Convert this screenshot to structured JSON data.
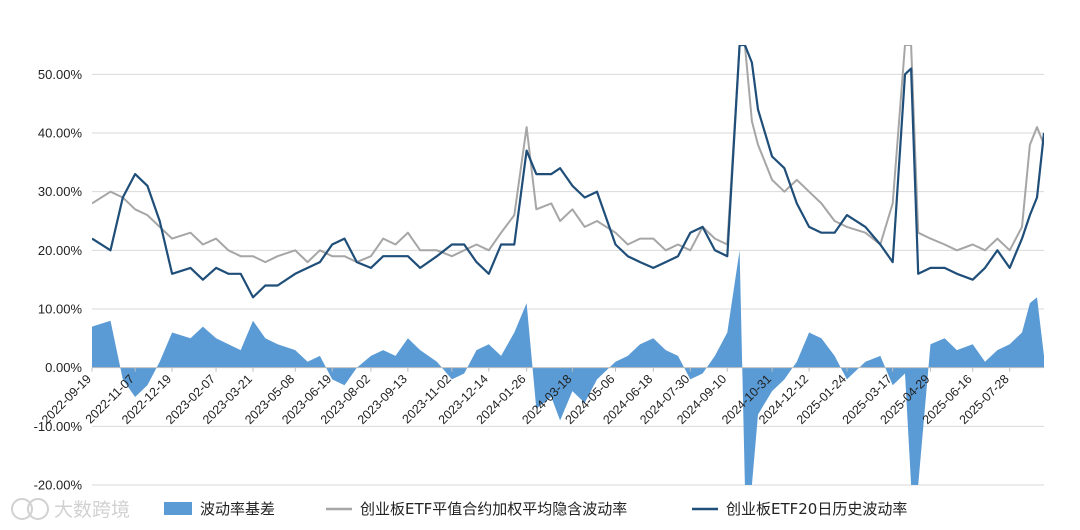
{
  "watermark": {
    "text": "大数跨境",
    "icon": "dashuju-logo-icon"
  },
  "colors": {
    "basis": "#5b9bd5",
    "iv": "#a6a6a6",
    "hv": "#1f4e79",
    "grid": "#d9d9d9",
    "axis": "#bfbfbf"
  },
  "chart_data": {
    "type": "line",
    "title": "",
    "xlabel": "",
    "ylabel": "",
    "ylim": [
      -0.2,
      0.55
    ],
    "yticks": [
      -0.2,
      -0.1,
      0.0,
      0.1,
      0.2,
      0.3,
      0.4,
      0.5
    ],
    "ytick_labels": [
      "-20.00%",
      "-10.00%",
      "0.00%",
      "10.00%",
      "20.00%",
      "30.00%",
      "40.00%",
      "50.00%"
    ],
    "grid": "horizontal",
    "legend_position": "bottom",
    "x_start": "2022-09-19",
    "x_end": "2025-09-05",
    "xtick_labels": [
      "2022-09-19",
      "2022-11-07",
      "2022-12-19",
      "2023-02-07",
      "2023-03-21",
      "2023-05-08",
      "2023-06-19",
      "2023-08-02",
      "2023-09-13",
      "2023-11-02",
      "2023-12-14",
      "2024-01-26",
      "2024-03-18",
      "2024-05-06",
      "2024-06-18",
      "2024-07-30",
      "2024-09-10",
      "2024-10-31",
      "2024-12-12",
      "2025-01-24",
      "2025-03-17",
      "2025-04-29",
      "2025-06-16",
      "2025-07-28"
    ],
    "xtick_display": [
      "2022-09-19",
      "2022-11-07",
      "2022-12-19",
      "2023-02-07",
      "2023-03-21",
      "2023-05-08",
      "2023-06-19",
      "2023-08-02",
      "2023-09-13",
      "2023-11-02",
      "2023-12-14",
      "2024-01-26",
      "2024-03-18",
      "2024-05-06",
      "2024-06-18",
      "2024-07-30",
      "2024-09-10",
      "2024-10-31",
      "2024-12-12",
      "2025-01-24",
      "2025-03-17",
      "2025-04-29",
      "2025-06-16",
      "2025-07-28"
    ],
    "series": [
      {
        "name": "波动率基差",
        "kind": "area",
        "x": [
          "2022-09-19",
          "2022-10-10",
          "2022-10-24",
          "2022-11-07",
          "2022-11-21",
          "2022-12-05",
          "2022-12-19",
          "2023-01-09",
          "2023-01-23",
          "2023-02-07",
          "2023-02-21",
          "2023-03-07",
          "2023-03-21",
          "2023-04-04",
          "2023-04-18",
          "2023-05-08",
          "2023-05-22",
          "2023-06-05",
          "2023-06-19",
          "2023-07-03",
          "2023-07-17",
          "2023-08-02",
          "2023-08-16",
          "2023-08-30",
          "2023-09-13",
          "2023-09-27",
          "2023-10-16",
          "2023-11-02",
          "2023-11-16",
          "2023-11-30",
          "2023-12-14",
          "2023-12-28",
          "2024-01-12",
          "2024-01-26",
          "2024-02-06",
          "2024-02-23",
          "2024-03-04",
          "2024-03-18",
          "2024-04-01",
          "2024-04-15",
          "2024-05-06",
          "2024-05-20",
          "2024-06-03",
          "2024-06-18",
          "2024-07-02",
          "2024-07-16",
          "2024-07-30",
          "2024-08-13",
          "2024-08-27",
          "2024-09-10",
          "2024-09-24",
          "2024-09-30",
          "2024-10-08",
          "2024-10-15",
          "2024-10-31",
          "2024-11-14",
          "2024-11-28",
          "2024-12-12",
          "2024-12-26",
          "2025-01-10",
          "2025-01-24",
          "2025-02-14",
          "2025-03-03",
          "2025-03-17",
          "2025-03-31",
          "2025-04-07",
          "2025-04-15",
          "2025-04-29",
          "2025-05-15",
          "2025-05-29",
          "2025-06-16",
          "2025-06-30",
          "2025-07-14",
          "2025-07-28",
          "2025-08-11",
          "2025-08-20",
          "2025-08-28",
          "2025-09-05"
        ],
        "values": [
          0.07,
          0.08,
          -0.02,
          -0.05,
          -0.03,
          0.01,
          0.06,
          0.05,
          0.07,
          0.05,
          0.04,
          0.03,
          0.08,
          0.05,
          0.04,
          0.03,
          0.01,
          0.02,
          -0.02,
          -0.03,
          0.0,
          0.02,
          0.03,
          0.02,
          0.05,
          0.03,
          0.01,
          -0.02,
          -0.01,
          0.03,
          0.04,
          0.02,
          0.06,
          0.11,
          -0.07,
          -0.05,
          -0.09,
          -0.04,
          -0.06,
          -0.02,
          0.01,
          0.02,
          0.04,
          0.05,
          0.03,
          0.02,
          -0.02,
          -0.01,
          0.02,
          0.06,
          0.2,
          -0.2,
          -0.2,
          -0.08,
          -0.04,
          -0.02,
          0.01,
          0.06,
          0.05,
          0.02,
          -0.02,
          0.01,
          0.02,
          -0.03,
          -0.01,
          -0.2,
          -0.2,
          0.04,
          0.05,
          0.03,
          0.04,
          0.01,
          0.03,
          0.04,
          0.06,
          0.11,
          0.12,
          0.02
        ]
      },
      {
        "name": "创业板ETF平值合约加权平均隐含波动率",
        "kind": "line",
        "x": [
          "2022-09-19",
          "2022-10-10",
          "2022-10-24",
          "2022-11-07",
          "2022-11-21",
          "2022-12-05",
          "2022-12-19",
          "2023-01-09",
          "2023-01-23",
          "2023-02-07",
          "2023-02-21",
          "2023-03-07",
          "2023-03-21",
          "2023-04-04",
          "2023-04-18",
          "2023-05-08",
          "2023-05-22",
          "2023-06-05",
          "2023-06-19",
          "2023-07-03",
          "2023-07-17",
          "2023-08-02",
          "2023-08-16",
          "2023-08-30",
          "2023-09-13",
          "2023-09-27",
          "2023-10-16",
          "2023-11-02",
          "2023-11-16",
          "2023-11-30",
          "2023-12-14",
          "2023-12-28",
          "2024-01-12",
          "2024-01-26",
          "2024-02-06",
          "2024-02-23",
          "2024-03-04",
          "2024-03-18",
          "2024-04-01",
          "2024-04-15",
          "2024-05-06",
          "2024-05-20",
          "2024-06-03",
          "2024-06-18",
          "2024-07-02",
          "2024-07-16",
          "2024-07-30",
          "2024-08-13",
          "2024-08-27",
          "2024-09-10",
          "2024-09-24",
          "2024-09-30",
          "2024-10-08",
          "2024-10-15",
          "2024-10-31",
          "2024-11-14",
          "2024-11-28",
          "2024-12-12",
          "2024-12-26",
          "2025-01-10",
          "2025-01-24",
          "2025-02-14",
          "2025-03-03",
          "2025-03-17",
          "2025-03-31",
          "2025-04-07",
          "2025-04-15",
          "2025-04-29",
          "2025-05-15",
          "2025-05-29",
          "2025-06-16",
          "2025-06-30",
          "2025-07-14",
          "2025-07-28",
          "2025-08-11",
          "2025-08-20",
          "2025-08-28",
          "2025-09-05"
        ],
        "values": [
          0.28,
          0.3,
          0.29,
          0.27,
          0.26,
          0.24,
          0.22,
          0.23,
          0.21,
          0.22,
          0.2,
          0.19,
          0.19,
          0.18,
          0.19,
          0.2,
          0.18,
          0.2,
          0.19,
          0.19,
          0.18,
          0.19,
          0.22,
          0.21,
          0.23,
          0.2,
          0.2,
          0.19,
          0.2,
          0.21,
          0.2,
          0.23,
          0.26,
          0.41,
          0.27,
          0.28,
          0.25,
          0.27,
          0.24,
          0.25,
          0.23,
          0.21,
          0.22,
          0.22,
          0.2,
          0.21,
          0.2,
          0.24,
          0.22,
          0.21,
          0.6,
          0.55,
          0.42,
          0.38,
          0.32,
          0.3,
          0.32,
          0.3,
          0.28,
          0.25,
          0.24,
          0.23,
          0.21,
          0.28,
          0.55,
          0.6,
          0.23,
          0.22,
          0.21,
          0.2,
          0.21,
          0.2,
          0.22,
          0.2,
          0.24,
          0.38,
          0.41,
          0.38
        ]
      },
      {
        "name": "创业板ETF20日历史波动率",
        "kind": "line",
        "x": [
          "2022-09-19",
          "2022-10-10",
          "2022-10-24",
          "2022-11-07",
          "2022-11-21",
          "2022-12-05",
          "2022-12-19",
          "2023-01-09",
          "2023-01-23",
          "2023-02-07",
          "2023-02-21",
          "2023-03-07",
          "2023-03-21",
          "2023-04-04",
          "2023-04-18",
          "2023-05-08",
          "2023-05-22",
          "2023-06-05",
          "2023-06-19",
          "2023-07-03",
          "2023-07-17",
          "2023-08-02",
          "2023-08-16",
          "2023-08-30",
          "2023-09-13",
          "2023-09-27",
          "2023-10-16",
          "2023-11-02",
          "2023-11-16",
          "2023-11-30",
          "2023-12-14",
          "2023-12-28",
          "2024-01-12",
          "2024-01-26",
          "2024-02-06",
          "2024-02-23",
          "2024-03-04",
          "2024-03-18",
          "2024-04-01",
          "2024-04-15",
          "2024-05-06",
          "2024-05-20",
          "2024-06-03",
          "2024-06-18",
          "2024-07-02",
          "2024-07-16",
          "2024-07-30",
          "2024-08-13",
          "2024-08-27",
          "2024-09-10",
          "2024-09-24",
          "2024-09-30",
          "2024-10-08",
          "2024-10-15",
          "2024-10-31",
          "2024-11-14",
          "2024-11-28",
          "2024-12-12",
          "2024-12-26",
          "2025-01-10",
          "2025-01-24",
          "2025-02-14",
          "2025-03-03",
          "2025-03-17",
          "2025-03-31",
          "2025-04-07",
          "2025-04-15",
          "2025-04-29",
          "2025-05-15",
          "2025-05-29",
          "2025-06-16",
          "2025-06-30",
          "2025-07-14",
          "2025-07-28",
          "2025-08-11",
          "2025-08-20",
          "2025-08-28",
          "2025-09-05"
        ],
        "values": [
          0.22,
          0.2,
          0.29,
          0.33,
          0.31,
          0.25,
          0.16,
          0.17,
          0.15,
          0.17,
          0.16,
          0.16,
          0.12,
          0.14,
          0.14,
          0.16,
          0.17,
          0.18,
          0.21,
          0.22,
          0.18,
          0.17,
          0.19,
          0.19,
          0.19,
          0.17,
          0.19,
          0.21,
          0.21,
          0.18,
          0.16,
          0.21,
          0.21,
          0.37,
          0.33,
          0.33,
          0.34,
          0.31,
          0.29,
          0.3,
          0.21,
          0.19,
          0.18,
          0.17,
          0.18,
          0.19,
          0.23,
          0.24,
          0.2,
          0.19,
          0.6,
          0.6,
          0.52,
          0.44,
          0.36,
          0.34,
          0.28,
          0.24,
          0.23,
          0.23,
          0.26,
          0.24,
          0.21,
          0.18,
          0.5,
          0.51,
          0.16,
          0.17,
          0.17,
          0.16,
          0.15,
          0.17,
          0.2,
          0.17,
          0.22,
          0.26,
          0.29,
          0.4
        ]
      }
    ]
  }
}
